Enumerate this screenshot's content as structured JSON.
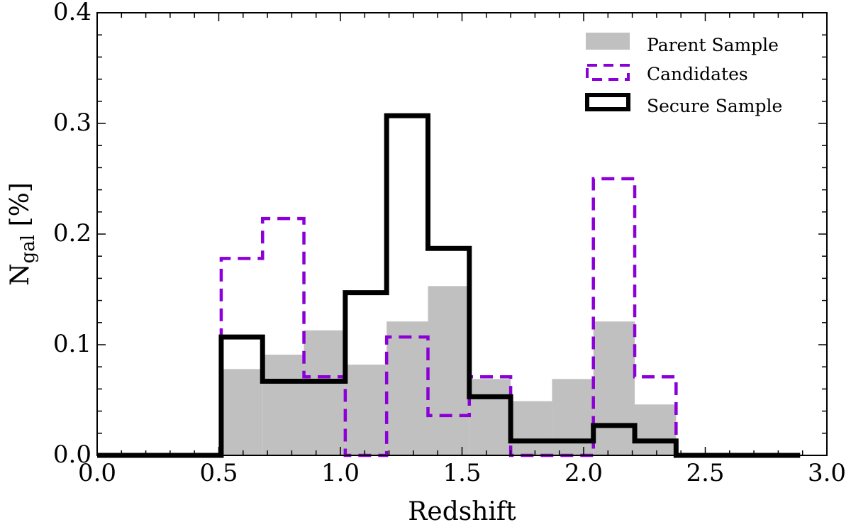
{
  "chart_data": {
    "type": "bar",
    "xlabel": "Redshift",
    "ylabel": {
      "main": "N",
      "sub": "gal",
      "suffix": " [%]"
    },
    "xlim": [
      0.0,
      3.0
    ],
    "ylim": [
      0.0,
      0.4
    ],
    "xticks": [
      0.0,
      0.5,
      1.0,
      1.5,
      2.0,
      2.5,
      3.0
    ],
    "xtick_labels": [
      "0.0",
      "0.5",
      "1.0",
      "1.5",
      "2.0",
      "2.5",
      "3.0"
    ],
    "yticks": [
      0.0,
      0.1,
      0.2,
      0.3,
      0.4
    ],
    "ytick_labels": [
      "0.0",
      "0.1",
      "0.2",
      "0.3",
      "0.4"
    ],
    "bin_edges": [
      0.0,
      0.17,
      0.34,
      0.51,
      0.68,
      0.85,
      1.02,
      1.19,
      1.36,
      1.53,
      1.7,
      1.87,
      2.04,
      2.21,
      2.38,
      2.55,
      2.72,
      2.89
    ],
    "legend_position": "top-right",
    "grid": false,
    "series": [
      {
        "name": "Parent Sample",
        "style": "filled",
        "color": "#c0c0c0",
        "values": [
          0,
          0,
          0,
          0.078,
          0.091,
          0.113,
          0.082,
          0.121,
          0.153,
          0.069,
          0.049,
          0.069,
          0.121,
          0.046,
          0,
          0,
          0
        ]
      },
      {
        "name": "Candidates",
        "style": "dashed-step",
        "color": "#8b00d6",
        "values": [
          0,
          0,
          0,
          0.178,
          0.214,
          0.071,
          0.0,
          0.107,
          0.036,
          0.071,
          0.0,
          0.0,
          0.25,
          0.071,
          0,
          0,
          0
        ]
      },
      {
        "name": "Secure Sample",
        "style": "solid-step",
        "color": "#000000",
        "values": [
          0,
          0,
          0,
          0.107,
          0.067,
          0.067,
          0.147,
          0.307,
          0.187,
          0.053,
          0.013,
          0.013,
          0.027,
          0.013,
          0,
          0,
          0
        ]
      }
    ]
  }
}
